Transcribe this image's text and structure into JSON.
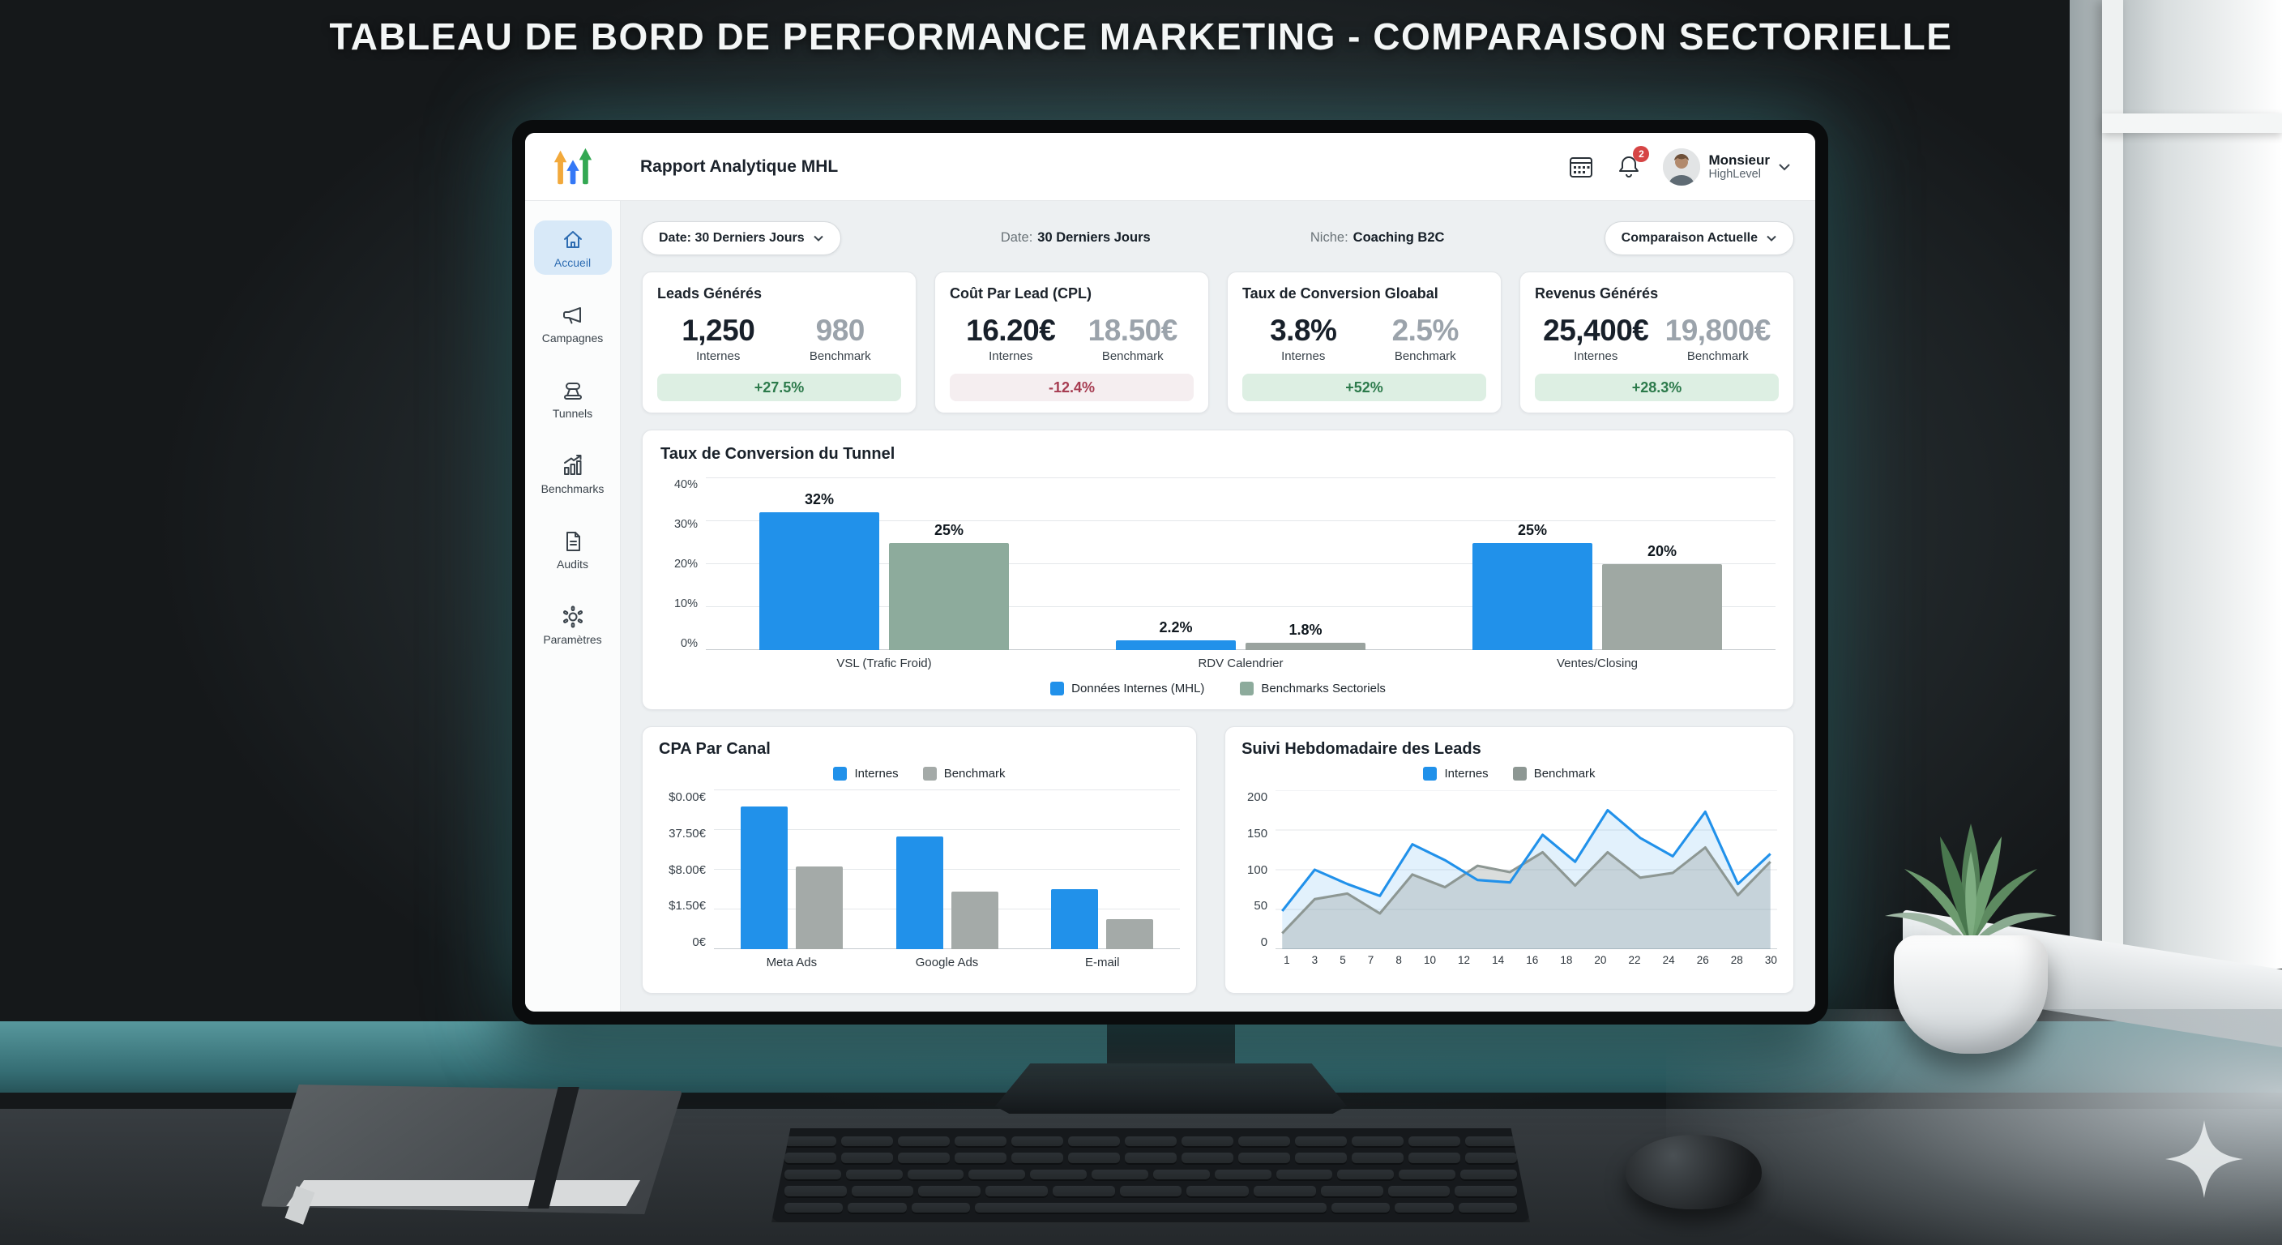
{
  "banner": {
    "title": "TABLEAU DE BORD DE PERFORMANCE MARKETING - COMPARAISON SECTORIELLE"
  },
  "app": {
    "header": {
      "title": "Rapport Analytique MHL",
      "notification_count": "2",
      "user_name": "Monsieur",
      "user_subtitle": "HighLevel"
    },
    "sidebar": {
      "items": [
        {
          "label": "Accueil",
          "icon": "home-icon",
          "active": true
        },
        {
          "label": "Campagnes",
          "icon": "megaphone-icon",
          "active": false
        },
        {
          "label": "Tunnels",
          "icon": "funnel-icon",
          "active": false
        },
        {
          "label": "Benchmarks",
          "icon": "bar-chart-icon",
          "active": false
        },
        {
          "label": "Audits",
          "icon": "document-icon",
          "active": false
        },
        {
          "label": "Paramètres",
          "icon": "gear-icon",
          "active": false
        }
      ]
    },
    "filters": {
      "date_dropdown": "Date: 30 Derniers Jours",
      "date_label": "Date:",
      "date_value": "30 Derniers Jours",
      "niche_label": "Niche:",
      "niche_value": "Coaching B2C",
      "comparison_dropdown": "Comparaison Actuelle"
    },
    "kpis": [
      {
        "title": "Leads Générés",
        "internal": "1,250",
        "internal_label": "Internes",
        "benchmark": "980",
        "benchmark_label": "Benchmark",
        "delta": "+27.5%",
        "delta_positive": true
      },
      {
        "title": "Coût Par Lead (CPL)",
        "internal": "16.20€",
        "internal_label": "Internes",
        "benchmark": "18.50€",
        "benchmark_label": "Benchmark",
        "delta": "-12.4%",
        "delta_positive": false
      },
      {
        "title": "Taux de Conversion Gloabal",
        "internal": "3.8%",
        "internal_label": "Internes",
        "benchmark": "2.5%",
        "benchmark_label": "Benchmark",
        "delta": "+52%",
        "delta_positive": true
      },
      {
        "title": "Revenus Générés",
        "internal": "25,400€",
        "internal_label": "Internes",
        "benchmark": "19,800€",
        "benchmark_label": "Benchmark",
        "delta": "+28.3%",
        "delta_positive": true
      }
    ],
    "colors": {
      "internal_blue": "#2191ea",
      "benchmark_sage": "#8dab9c",
      "benchmark_gray": "#a4aaa8",
      "positive_green": "#2c7a4b",
      "negative_red": "#a63c51",
      "sidebar_active_blue": "#2d6cb2"
    }
  },
  "chart_data": [
    {
      "id": "funnel",
      "type": "bar",
      "title": "Taux de Conversion du Tunnel",
      "categories": [
        "VSL (Trafic Froid)",
        "RDV Calendrier",
        "Ventes/Closing"
      ],
      "series": [
        {
          "name": "Données Internes (MHL)",
          "values": [
            32,
            2.2,
            25
          ],
          "labels": [
            "32%",
            "2.2%",
            "25%"
          ],
          "color": "#2191ea"
        },
        {
          "name": "Benchmarks Sectoriels",
          "values": [
            25,
            1.8,
            20
          ],
          "labels": [
            "25%",
            "1.8%",
            "20%"
          ],
          "colors": [
            "#8dab9c",
            "#9aa39f",
            "#9fa8a3"
          ]
        }
      ],
      "ylim": [
        0,
        40
      ],
      "yticks": [
        "0%",
        "10%",
        "20%",
        "30%",
        "40%"
      ],
      "legend_position": "bottom",
      "grid": true
    },
    {
      "id": "cpa",
      "type": "bar",
      "title": "CPA Par Canal",
      "categories": [
        "Meta Ads",
        "Google Ads",
        "E-mail"
      ],
      "series": [
        {
          "name": "Internes",
          "values_pct_of_axis": [
            90,
            71,
            38
          ],
          "color": "#2191ea"
        },
        {
          "name": "Benchmark",
          "values_pct_of_axis": [
            52,
            36,
            19
          ],
          "color": "#a4aaa8"
        }
      ],
      "yticks_top_to_bottom": [
        "$0.00€",
        "37.50€",
        "$8.00€",
        "$1.50€",
        "0€"
      ],
      "legend_position": "top",
      "grid": true,
      "note": "axis tick labels reproduced as printed; bar heights estimated as percent of full axis height"
    },
    {
      "id": "weekly",
      "type": "area",
      "title": "Suivi Hebdomadaire des Leads",
      "x": [
        "1",
        "3",
        "5",
        "7",
        "8",
        "10",
        "12",
        "14",
        "16",
        "18",
        "20",
        "22",
        "24",
        "26",
        "28",
        "30"
      ],
      "series": [
        {
          "name": "Internes",
          "values": [
            48,
            100,
            82,
            67,
            132,
            112,
            87,
            84,
            144,
            110,
            175,
            140,
            117,
            173,
            82,
            120
          ],
          "color": "#2191ea",
          "fill": "rgba(33,145,233,0.13)"
        },
        {
          "name": "Benchmark",
          "values": [
            20,
            63,
            70,
            45,
            94,
            78,
            105,
            97,
            122,
            80,
            122,
            90,
            96,
            128,
            68,
            110
          ],
          "color": "#8d9793",
          "fill": "rgba(139,149,145,0.32)"
        }
      ],
      "ylim": [
        0,
        200
      ],
      "yticks": [
        0,
        50,
        100,
        150,
        200
      ],
      "legend_position": "top",
      "grid": true
    }
  ]
}
